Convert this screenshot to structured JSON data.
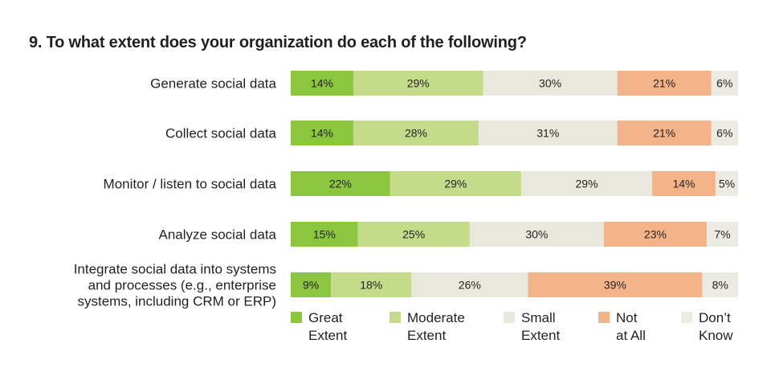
{
  "chart_data": {
    "type": "bar",
    "orientation": "horizontal",
    "stacked": true,
    "title": "9. To what extent does your organization do each of the following?",
    "categories": [
      [
        "Generate social data"
      ],
      [
        "Collect social data"
      ],
      [
        "Monitor / listen to social data"
      ],
      [
        "Analyze social data"
      ],
      [
        "Integrate social data into systems",
        "and processes (e.g., enterprise",
        "systems, including CRM or ERP)"
      ]
    ],
    "series": [
      {
        "name": "Great Extent",
        "legend_lines": [
          "Great",
          "Extent"
        ],
        "color": "#8cc63f",
        "values": [
          14,
          14,
          22,
          15,
          9
        ]
      },
      {
        "name": "Moderate Extent",
        "legend_lines": [
          "Moderate",
          "Extent"
        ],
        "color": "#c4dc8a",
        "values": [
          29,
          28,
          29,
          25,
          18
        ]
      },
      {
        "name": "Small Extent",
        "legend_lines": [
          "Small",
          "Extent"
        ],
        "color": "#e8e8dc",
        "values": [
          30,
          31,
          29,
          30,
          26
        ]
      },
      {
        "name": "Not at All",
        "legend_lines": [
          "Not",
          "at All"
        ],
        "color": "#f4b48a",
        "values": [
          21,
          21,
          14,
          23,
          39
        ]
      },
      {
        "name": "Don’t Know",
        "legend_lines": [
          "Don’t",
          "Know"
        ],
        "color": "#ebebe4",
        "values": [
          6,
          6,
          5,
          7,
          8
        ]
      }
    ],
    "value_suffix": "%",
    "legend_position": "bottom",
    "grid": false
  }
}
